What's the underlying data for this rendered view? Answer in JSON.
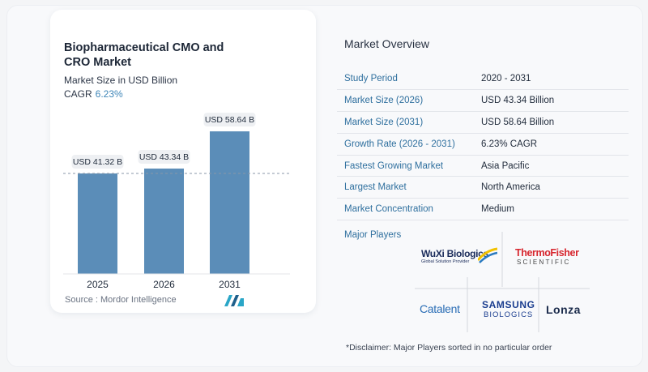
{
  "chart_data": {
    "type": "bar",
    "title": "Biopharmaceutical CMO and CRO Market",
    "subtitle": "Market Size in USD Billion",
    "cagr_label": "CAGR",
    "cagr_value": "6.23%",
    "categories": [
      "2025",
      "2026",
      "2031"
    ],
    "values": [
      41.32,
      43.34,
      58.64
    ],
    "data_labels": [
      "USD 41.32 B",
      "USD 43.34 B",
      "USD 58.64 B"
    ],
    "ylim": [
      0,
      62
    ],
    "reference_line": 41.32,
    "bar_color": "#5b8db8"
  },
  "source": "Source :  Mordor Intelligence",
  "overview": {
    "title": "Market Overview",
    "rows": [
      {
        "key": "Study Period",
        "value": "2020 - 2031"
      },
      {
        "key": "Market Size (2026)",
        "value": "USD 43.34 Billion"
      },
      {
        "key": "Market Size (2031)",
        "value": "USD 58.64 Billion"
      },
      {
        "key": "Growth Rate (2026 - 2031)",
        "value": "6.23% CAGR"
      },
      {
        "key": "Fastest Growing Market",
        "value": "Asia Pacific"
      },
      {
        "key": "Largest Market",
        "value": "North America"
      },
      {
        "key": "Market Concentration",
        "value": "Medium"
      }
    ]
  },
  "players": {
    "title": "Major Players",
    "wuxi": {
      "name": "WuXi Biologics",
      "tagline": "Global Solution Provider"
    },
    "thermo": {
      "name": "ThermoFisher",
      "sub": "SCIENTIFIC"
    },
    "catalent": "Catalent",
    "samsung": {
      "name": "SAMSUNG",
      "sub": "BIOLOGICS"
    },
    "lonza": "Lonza"
  },
  "disclaimer": "*Disclaimer: Major Players sorted in no particular order"
}
